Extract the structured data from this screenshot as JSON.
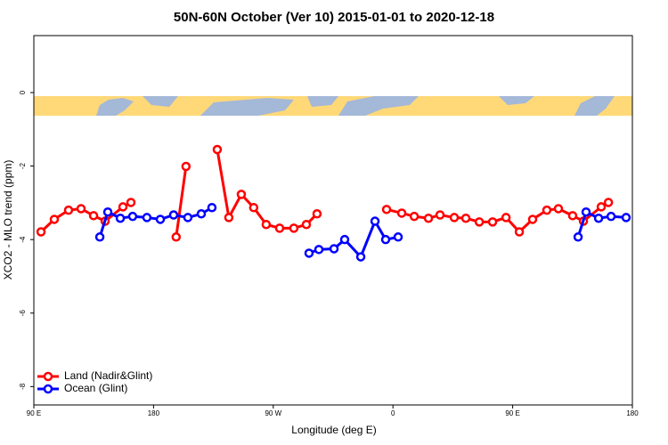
{
  "chart_data": {
    "type": "line",
    "title": "50N-60N October (Ver 10)   2015-01-01 to 2020-12-18",
    "x_label": "Longitude (deg E)",
    "y_label": "XCO2 - MLO trend (ppm)",
    "xlim": [
      90,
      540
    ],
    "ylim": [
      -8.5,
      1.55
    ],
    "xticks": [
      {
        "value": 90,
        "label": "90 E"
      },
      180,
      {
        "value": 270,
        "label": "90 W"
      },
      {
        "value": 360,
        "label": "0"
      },
      {
        "value": 450,
        "label": "90 E"
      },
      {
        "value": 540,
        "label": "180"
      }
    ],
    "yticks": [
      -8,
      -6,
      -4,
      -2,
      0
    ],
    "legend": "bottom-left",
    "series": [
      {
        "name": "Land (Nadir&Glint)",
        "color": "#ff0000",
        "x": [
          95.4,
          105.4,
          116.1,
          125.5,
          134.9,
          143.6,
          157,
          163,
          null,
          197,
          204.4,
          null,
          227.9,
          236.6,
          246,
          255.3,
          264.7,
          274.8,
          285.5,
          294.9,
          302.9,
          null,
          355.2,
          366.6,
          376,
          386.7,
          395.4,
          406.1,
          414.8,
          424.9,
          434.9,
          445,
          455,
          465,
          475.7,
          484.4,
          495.1,
          503.2,
          516.6,
          522
        ],
        "values": [
          -3.79,
          -3.45,
          -3.2,
          -3.16,
          -3.35,
          -3.5,
          -3.11,
          -2.99,
          null,
          -3.93,
          -2.01,
          null,
          -1.55,
          -3.4,
          -2.77,
          -3.13,
          -3.59,
          -3.69,
          -3.69,
          -3.59,
          -3.3,
          null,
          -3.18,
          -3.28,
          -3.37,
          -3.42,
          -3.33,
          -3.4,
          -3.42,
          -3.52,
          -3.52,
          -3.4,
          -3.79,
          -3.45,
          -3.2,
          -3.16,
          -3.35,
          -3.5,
          -3.11,
          -2.99
        ]
      },
      {
        "name": "Ocean (Glint)",
        "color": "#0000ff",
        "x": [
          139.6,
          145.6,
          155,
          164.3,
          175,
          185.1,
          195.1,
          205.8,
          215.9,
          223.9,
          null,
          296.9,
          304.3,
          315.7,
          323.7,
          335.8,
          346.5,
          354.5,
          363.9,
          null,
          499.2,
          505.2,
          514.6,
          524,
          535.3
        ],
        "values": [
          -3.93,
          -3.25,
          -3.42,
          -3.37,
          -3.4,
          -3.45,
          -3.33,
          -3.4,
          -3.3,
          -3.13,
          null,
          -4.37,
          -4.27,
          -4.25,
          -4.0,
          -4.47,
          -3.5,
          -4.0,
          -3.93,
          null,
          -3.93,
          -3.25,
          -3.42,
          -3.37,
          -3.4
        ]
      }
    ]
  }
}
